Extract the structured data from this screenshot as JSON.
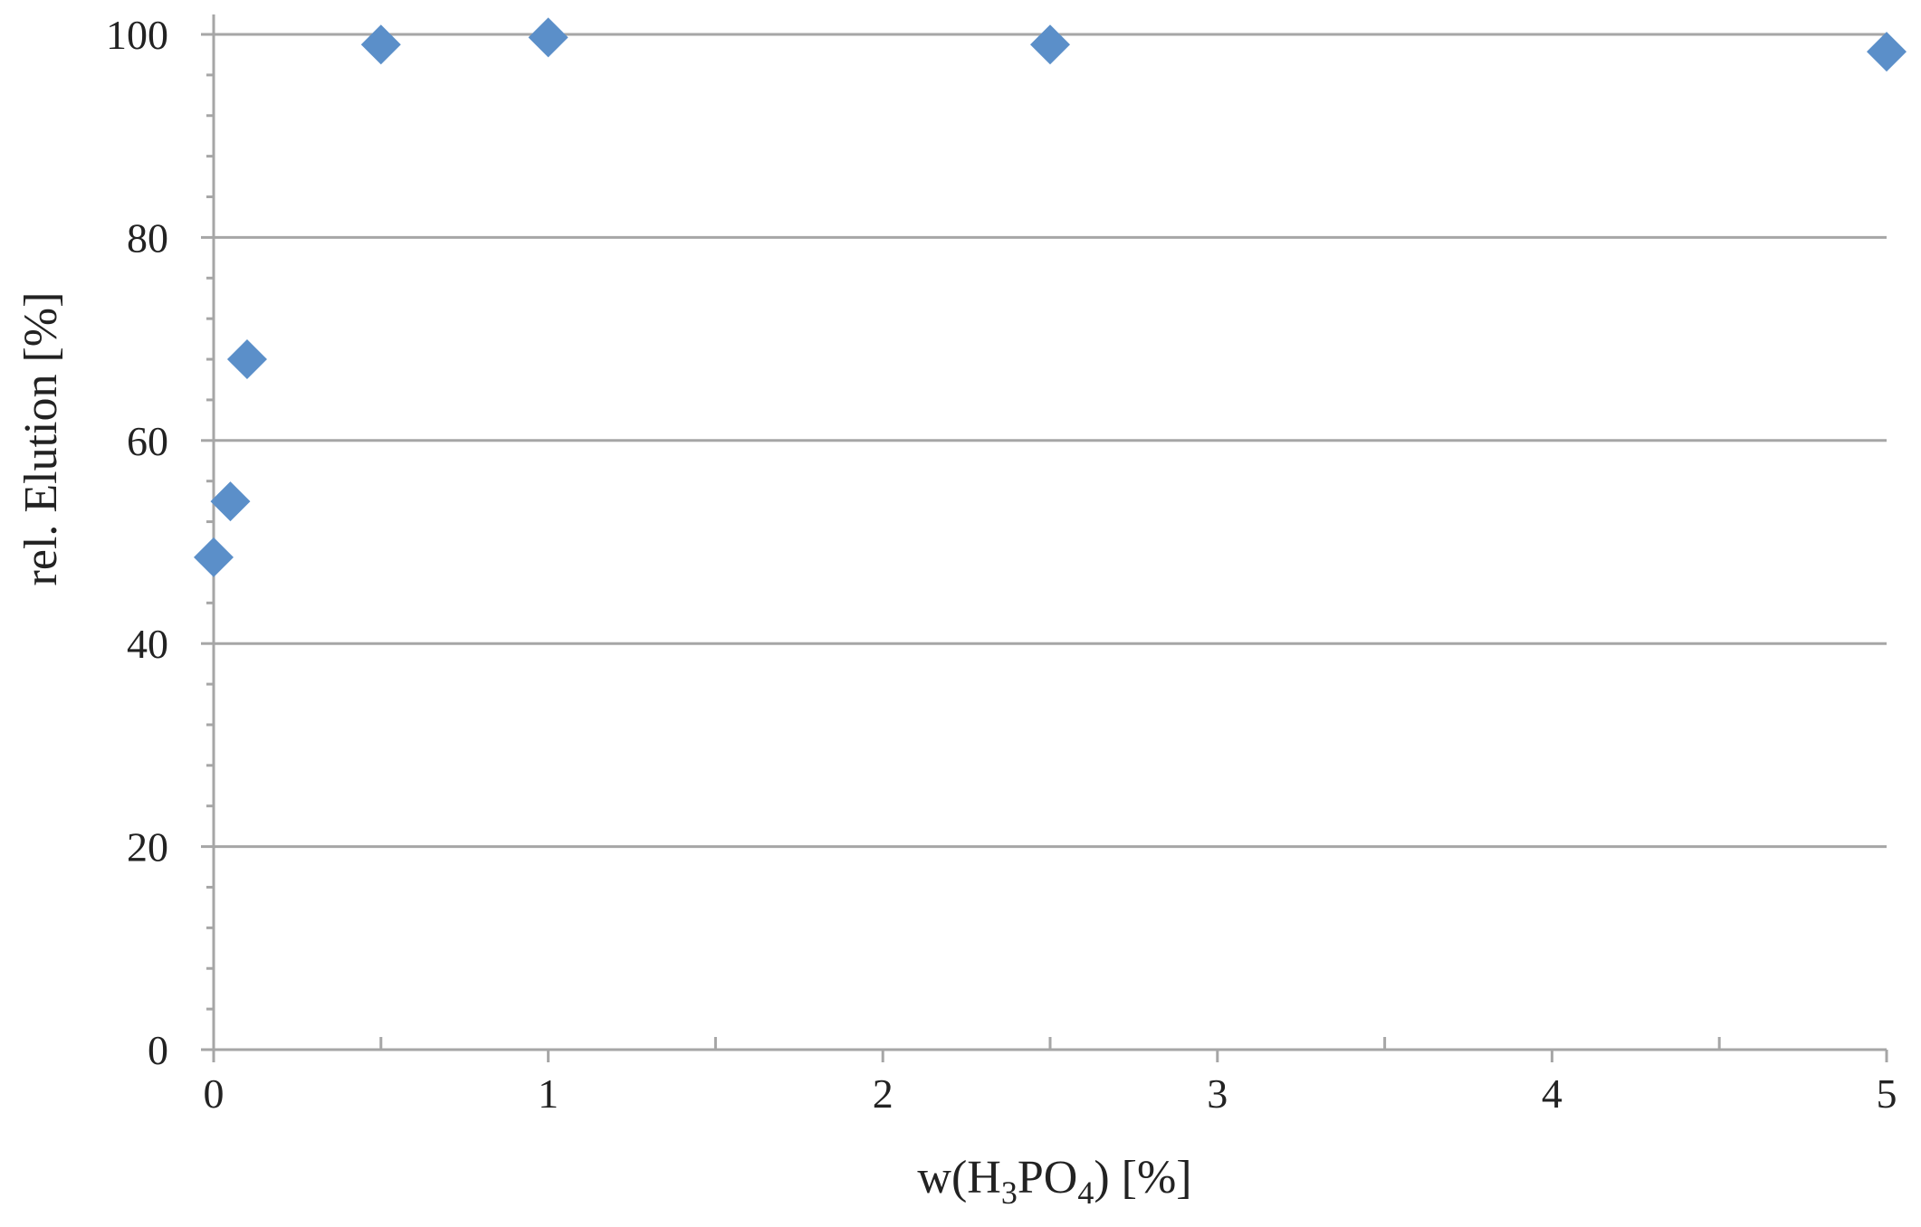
{
  "chart_data": {
    "type": "scatter",
    "series": [
      {
        "x": [
          0,
          0.05,
          0.1,
          0.5,
          1,
          2.5,
          5
        ],
        "y": [
          48.5,
          54,
          68,
          99,
          99.7,
          99,
          98.3
        ],
        "color": "#5b8fc9",
        "marker": "diamond"
      }
    ],
    "xlabel": {
      "prefix": "w(H",
      "sub1": "3",
      "mid": "PO",
      "sub2": "4",
      "suffix": ") [%]"
    },
    "ylabel": "rel. Elution [%]",
    "xlim": [
      0,
      5
    ],
    "ylim": [
      0,
      100
    ],
    "x_ticks": [
      "0",
      "1",
      "2",
      "3",
      "4",
      "5"
    ],
    "y_ticks": [
      "0",
      "20",
      "40",
      "60",
      "80",
      "100"
    ],
    "x_tick_values": [
      0,
      1,
      2,
      3,
      4,
      5
    ],
    "y_tick_values": [
      0,
      20,
      40,
      60,
      80,
      100
    ],
    "x_minor_step": 0.5,
    "y_minor_step": 4,
    "grid": "horizontal-major",
    "legend": "none"
  }
}
